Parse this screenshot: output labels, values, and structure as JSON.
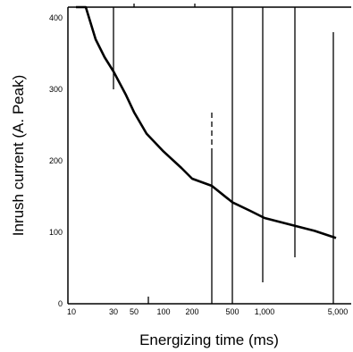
{
  "chart_data": {
    "type": "line",
    "title": "",
    "xlabel": "Energizing time (ms)",
    "ylabel": "Inrush current (A. Peak)",
    "x_scale": "log",
    "xlim": [
      10,
      3000
    ],
    "ylim": [
      0,
      450
    ],
    "x_ticks": [
      {
        "value": 10,
        "label": "10"
      },
      {
        "value": 30,
        "label": "30"
      },
      {
        "value": 50,
        "label": "50"
      },
      {
        "value": 100,
        "label": "100"
      },
      {
        "value": 200,
        "label": "200"
      },
      {
        "value": 500,
        "label": "500"
      },
      {
        "value": 1000,
        "label": "1,000"
      },
      {
        "value": 5000,
        "label": "5,000"
      }
    ],
    "y_ticks": [
      {
        "value": 0,
        "label": "0"
      },
      {
        "value": 100,
        "label": "100"
      },
      {
        "value": 200,
        "label": "200"
      },
      {
        "value": 300,
        "label": "300"
      },
      {
        "value": 400,
        "label": "400"
      }
    ],
    "reference_lines": [
      {
        "x": 30,
        "style": "solid",
        "from": 300,
        "to": 450
      },
      {
        "x": 75,
        "style": "solid",
        "from": 0,
        "to": 10
      },
      {
        "x": 270,
        "style": "solid",
        "from": 0,
        "to": 210
      },
      {
        "x": 500,
        "style": "solid",
        "from": 0,
        "to": 450
      },
      {
        "x": 900,
        "style": "solid",
        "from": 30,
        "to": 450
      },
      {
        "x": 1500,
        "style": "solid",
        "from": 65,
        "to": 450
      },
      {
        "x": 2800,
        "style": "solid",
        "from": 0,
        "to": 380
      },
      {
        "x": 45,
        "style": "dashed",
        "from": 420,
        "to": 450
      },
      {
        "x": 180,
        "style": "dashed",
        "from": 420,
        "to": 450
      },
      {
        "x": 265,
        "style": "dashed",
        "from": 210,
        "to": 270
      }
    ],
    "series": [
      {
        "x": [
          12,
          15,
          20,
          25,
          30,
          40,
          50,
          70,
          100,
          150,
          200,
          270,
          350,
          500,
          700,
          1000,
          1500,
          2000,
          3000
        ],
        "y": [
          415,
          415,
          370,
          345,
          325,
          292,
          268,
          238,
          213,
          190,
          175,
          165,
          154,
          142,
          130,
          120,
          109,
          102,
          92
        ]
      }
    ],
    "grid": false,
    "legend": "none"
  }
}
